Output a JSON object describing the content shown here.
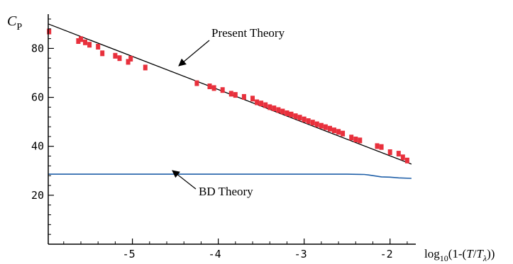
{
  "chart_data": {
    "type": "line",
    "title": "",
    "ylabel": {
      "main": "C",
      "sub": "P"
    },
    "xlabel": {
      "prefix": "log",
      "sub1": "10",
      "mid": "(1-(",
      "T": "T",
      "slash": "/",
      "T2": "T",
      "sub2": "λ",
      "suffix": "))"
    },
    "xlim": [
      -5.98,
      -1.7
    ],
    "ylim": [
      0,
      94
    ],
    "x_ticks": [
      -5,
      -4,
      -3,
      -2
    ],
    "x_tick_labels": [
      "-5",
      "-4",
      "-3",
      "-2"
    ],
    "y_ticks": [
      20,
      40,
      60,
      80
    ],
    "y_tick_labels": [
      "20",
      "40",
      "60",
      "80"
    ],
    "grid": false,
    "series": [
      {
        "name": "Present Theory",
        "kind": "line",
        "color": "#000000",
        "x": [
          -5.98,
          -1.75
        ],
        "y": [
          90.0,
          32.7
        ]
      },
      {
        "name": "BD Theory",
        "kind": "line",
        "color": "#1f5fa8",
        "x": [
          -5.98,
          -2.5,
          -2.3,
          -2.25,
          -2.1,
          -2.0,
          -1.9,
          -1.75
        ],
        "y": [
          28.6,
          28.6,
          28.5,
          28.3,
          27.5,
          27.4,
          27.1,
          26.9
        ]
      },
      {
        "name": "",
        "kind": "scatter",
        "color": "#e8303c",
        "x": [
          -5.97,
          -5.63,
          -5.6,
          -5.55,
          -5.5,
          -5.4,
          -5.35,
          -5.2,
          -5.15,
          -5.05,
          -5.02,
          -4.85,
          -4.25,
          -4.1,
          -4.05,
          -3.95,
          -3.85,
          -3.8,
          -3.7,
          -3.6,
          -3.55,
          -3.5,
          -3.45,
          -3.4,
          -3.35,
          -3.3,
          -3.25,
          -3.2,
          -3.15,
          -3.1,
          -3.05,
          -3.0,
          -2.95,
          -2.9,
          -2.85,
          -2.8,
          -2.75,
          -2.7,
          -2.65,
          -2.6,
          -2.55,
          -2.45,
          -2.4,
          -2.35,
          -2.15,
          -2.1,
          -2.0,
          -1.9,
          -1.85,
          -1.8
        ],
        "y": [
          86.9,
          83.0,
          83.8,
          82.5,
          81.5,
          80.7,
          78.0,
          77.0,
          76.0,
          74.5,
          75.8,
          72.2,
          65.8,
          64.5,
          63.8,
          63.0,
          61.5,
          61.0,
          60.2,
          59.5,
          58.0,
          57.5,
          56.8,
          56.0,
          55.5,
          54.8,
          54.2,
          53.5,
          53.0,
          52.3,
          51.7,
          51.0,
          50.3,
          49.7,
          49.0,
          48.4,
          47.8,
          47.2,
          46.5,
          45.9,
          45.2,
          43.6,
          42.8,
          42.4,
          40.1,
          39.7,
          37.6,
          37.0,
          35.5,
          34.2
        ]
      }
    ],
    "annotations": [
      {
        "text": "Present Theory",
        "at_x": -4.45,
        "at_y": 68.8
      },
      {
        "text": "BD Theory",
        "at_x": -4.5,
        "at_y": 28.6
      }
    ]
  }
}
